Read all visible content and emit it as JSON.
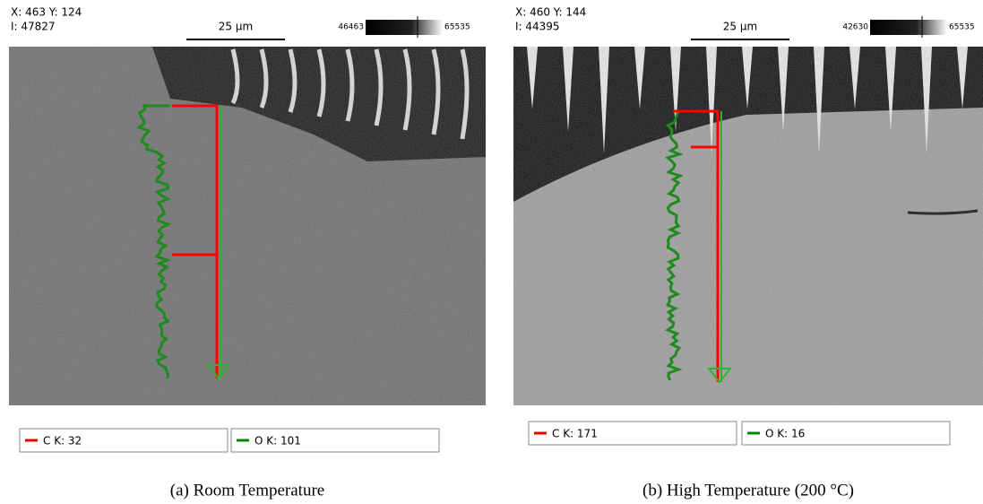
{
  "panels": [
    {
      "coords": "X: 463 Y: 124",
      "intensity": "I: 47827",
      "scale": "25 µm",
      "gray_min": "46463",
      "gray_max": "65535",
      "legend": [
        "C K: 32",
        "O K: 101"
      ],
      "caption": "(a) Room Temperature"
    },
    {
      "coords": "X: 460 Y: 144",
      "intensity": "I: 44395",
      "scale": "25 µm",
      "gray_min": "42630",
      "gray_max": "65535",
      "legend": [
        "C K: 171",
        "O K: 16"
      ],
      "caption": "(b) High Temperature (200 °C)"
    }
  ]
}
